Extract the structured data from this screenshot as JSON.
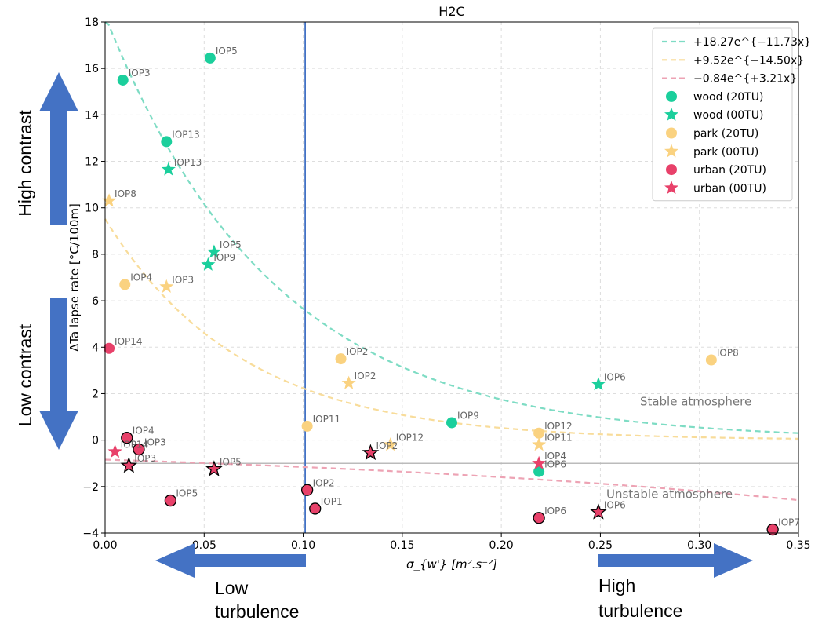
{
  "chart_data": {
    "type": "scatter",
    "title": "H2C",
    "xlabel": "σ_{w'} [m².s⁻²]",
    "ylabel": "ΔTa lapse rate [°C/100m]",
    "xlim": [
      0.0,
      0.35
    ],
    "ylim": [
      -4,
      18
    ],
    "xticks": [
      "0.00",
      "0.05",
      "0.10",
      "0.15",
      "0.20",
      "0.25",
      "0.30",
      "0.35"
    ],
    "yticks": [
      "−4",
      "−2",
      "0",
      "2",
      "4",
      "6",
      "8",
      "10",
      "12",
      "14",
      "16",
      "18"
    ],
    "grid": true,
    "legend_position": "top-right",
    "threshold_line": {
      "orientation": "vertical",
      "x": 0.101,
      "color": "#4472c4"
    },
    "reference_line": {
      "orientation": "horizontal",
      "y": -1.0,
      "color": "#bbbbbb"
    },
    "annotations": [
      {
        "text": "Stable atmosphere",
        "x": 0.27,
        "y": 1.5
      },
      {
        "text": "Unstable atmosphere",
        "x": 0.253,
        "y": -2.5
      }
    ],
    "fits": [
      {
        "name": "+18.27e^{−11.73x}",
        "a": 18.27,
        "b": -11.73,
        "color": "#7edcc4"
      },
      {
        "name": "+9.52e^{−14.50x}",
        "a": 9.52,
        "b": -14.5,
        "color": "#f8dc9a"
      },
      {
        "name": "−0.84e^{+3.21x}",
        "a": -0.84,
        "b": 3.21,
        "color": "#eda3b4"
      }
    ],
    "series": [
      {
        "name": "wood (20TU)",
        "marker": "circle",
        "color": "#1bcf9c",
        "edge": "none",
        "points": [
          {
            "x": 0.009,
            "y": 15.5,
            "label": "IOP3"
          },
          {
            "x": 0.053,
            "y": 16.45,
            "label": "IOP5"
          },
          {
            "x": 0.031,
            "y": 12.85,
            "label": "IOP13"
          },
          {
            "x": 0.175,
            "y": 0.75,
            "label": "IOP9"
          },
          {
            "x": 0.219,
            "y": -1.35,
            "label": "IOP6"
          }
        ]
      },
      {
        "name": "wood (00TU)",
        "marker": "star",
        "color": "#1bcf9c",
        "edge": "none",
        "points": [
          {
            "x": 0.032,
            "y": 11.65,
            "label": "IOP13"
          },
          {
            "x": 0.055,
            "y": 8.1,
            "label": "IOP5"
          },
          {
            "x": 0.052,
            "y": 7.55,
            "label": "IOP9"
          },
          {
            "x": 0.249,
            "y": 2.4,
            "label": "IOP6"
          }
        ]
      },
      {
        "name": "park (20TU)",
        "marker": "circle",
        "color": "#fad280",
        "edge": "none",
        "points": [
          {
            "x": 0.01,
            "y": 6.7,
            "label": "IOP4"
          },
          {
            "x": 0.119,
            "y": 3.5,
            "label": "IOP2"
          },
          {
            "x": 0.102,
            "y": 0.6,
            "label": "IOP11"
          },
          {
            "x": 0.219,
            "y": 0.3,
            "label": "IOP12"
          },
          {
            "x": 0.306,
            "y": 3.45,
            "label": "IOP8"
          }
        ]
      },
      {
        "name": "park (00TU)",
        "marker": "star",
        "color": "#fad280",
        "edge": "none",
        "points": [
          {
            "x": 0.002,
            "y": 10.3,
            "label": "IOP8"
          },
          {
            "x": 0.031,
            "y": 6.6,
            "label": "IOP3"
          },
          {
            "x": 0.123,
            "y": 2.45,
            "label": "IOP2"
          },
          {
            "x": 0.144,
            "y": -0.2,
            "label": "IOP12"
          },
          {
            "x": 0.219,
            "y": -0.2,
            "label": "IOP11"
          }
        ]
      },
      {
        "name": "urban (20TU)",
        "marker": "circle",
        "color": "#e8416a",
        "edge": "none",
        "points": [
          {
            "x": 0.002,
            "y": 3.95,
            "label": "IOP14"
          }
        ]
      },
      {
        "name": "urban (20TU) outlined",
        "legend": false,
        "marker": "circle",
        "color": "#e8416a",
        "edge": "#000000",
        "points": [
          {
            "x": 0.011,
            "y": 0.1,
            "label": "IOP4"
          },
          {
            "x": 0.017,
            "y": -0.4,
            "label": "IOP3"
          },
          {
            "x": 0.033,
            "y": -2.6,
            "label": "IOP5"
          },
          {
            "x": 0.102,
            "y": -2.15,
            "label": "IOP2"
          },
          {
            "x": 0.106,
            "y": -2.95,
            "label": "IOP1"
          },
          {
            "x": 0.219,
            "y": -3.35,
            "label": "IOP6"
          },
          {
            "x": 0.337,
            "y": -3.85,
            "label": "IOP7"
          }
        ]
      },
      {
        "name": "urban (00TU)",
        "marker": "star",
        "color": "#e8416a",
        "edge": "none",
        "points": [
          {
            "x": 0.005,
            "y": -0.5,
            "label": "IOP14"
          },
          {
            "x": 0.219,
            "y": -1.0,
            "label": "IOP4"
          }
        ]
      },
      {
        "name": "urban (00TU) outlined",
        "legend": false,
        "marker": "star",
        "color": "#e8416a",
        "edge": "#000000",
        "points": [
          {
            "x": 0.012,
            "y": -1.1,
            "label": "IOP3"
          },
          {
            "x": 0.055,
            "y": -1.25,
            "label": "IOP5"
          },
          {
            "x": 0.134,
            "y": -0.55,
            "label": "IOP2"
          },
          {
            "x": 0.249,
            "y": -3.1,
            "label": "IOP6"
          }
        ]
      }
    ]
  },
  "outer_annotations": {
    "high_contrast": "High contrast",
    "low_contrast": "Low contrast",
    "low_turbulence_1": "Low",
    "low_turbulence_2": "turbulence",
    "high_turbulence_1": "High",
    "high_turbulence_2": "turbulence"
  },
  "colors": {
    "arrow": "#4472c4"
  }
}
